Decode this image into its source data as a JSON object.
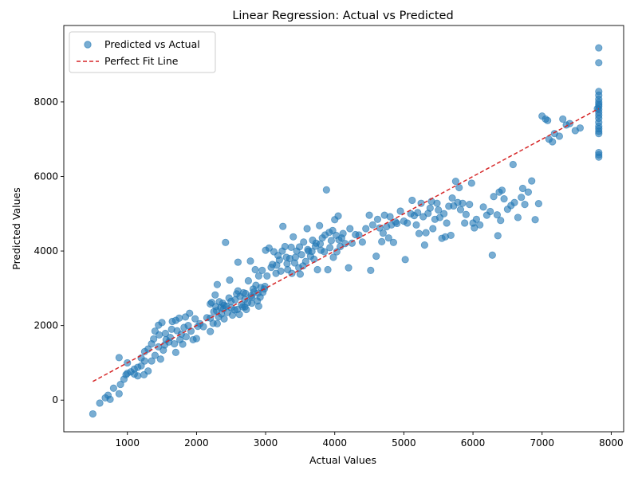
{
  "chart_data": {
    "type": "scatter",
    "title": "Linear Regression: Actual vs Predicted",
    "xlabel": "Actual Values",
    "ylabel": "Predicted Values",
    "xlim": [
      80,
      8180
    ],
    "ylim": [
      -850,
      10050
    ],
    "x_ticks": [
      1000,
      2000,
      3000,
      4000,
      5000,
      6000,
      7000,
      8000
    ],
    "y_ticks": [
      0,
      2000,
      4000,
      6000,
      8000
    ],
    "grid": false,
    "legend_position": "top-left",
    "series": [
      {
        "name": "Predicted vs Actual",
        "kind": "scatter",
        "color": "#1f77b4",
        "opacity": 0.6,
        "points": [
          [
            500,
            -370
          ],
          [
            600,
            -80
          ],
          [
            680,
            60
          ],
          [
            720,
            130
          ],
          [
            750,
            20
          ],
          [
            800,
            320
          ],
          [
            880,
            170
          ],
          [
            900,
            420
          ],
          [
            950,
            560
          ],
          [
            980,
            680
          ],
          [
            1000,
            1000
          ],
          [
            1050,
            760
          ],
          [
            1100,
            830
          ],
          [
            1150,
            650
          ],
          [
            1200,
            920
          ],
          [
            1250,
            1050
          ],
          [
            1300,
            1370
          ],
          [
            1350,
            1510
          ],
          [
            1400,
            1850
          ],
          [
            1450,
            2010
          ],
          [
            1500,
            2080
          ],
          [
            1550,
            1790
          ],
          [
            1600,
            1560
          ],
          [
            1650,
            2110
          ],
          [
            1700,
            1280
          ],
          [
            1750,
            2200
          ],
          [
            1800,
            1500
          ],
          [
            1850,
            1700
          ],
          [
            1900,
            2330
          ],
          [
            1950,
            1620
          ],
          [
            2000,
            1650
          ],
          [
            1100,
            700
          ],
          [
            1150,
            880
          ],
          [
            1200,
            1130
          ],
          [
            1250,
            1300
          ],
          [
            1300,
            780
          ],
          [
            1350,
            1050
          ],
          [
            1400,
            1200
          ],
          [
            1450,
            1430
          ],
          [
            1480,
            1100
          ],
          [
            1520,
            1340
          ],
          [
            1560,
            1620
          ],
          [
            1620,
            1680
          ],
          [
            1680,
            1510
          ],
          [
            1720,
            1860
          ],
          [
            1780,
            1770
          ],
          [
            1820,
            1950
          ],
          [
            1880,
            2000
          ],
          [
            1920,
            1850
          ],
          [
            1980,
            2180
          ],
          [
            2020,
            1980
          ],
          [
            880,
            1140
          ],
          [
            1000,
            720
          ],
          [
            1240,
            680
          ],
          [
            1380,
            1640
          ],
          [
            1460,
            1750
          ],
          [
            1540,
            1480
          ],
          [
            1640,
            1900
          ],
          [
            1700,
            2140
          ],
          [
            1760,
            1620
          ],
          [
            1840,
            2230
          ],
          [
            2050,
            2050
          ],
          [
            2100,
            1970
          ],
          [
            2150,
            2210
          ],
          [
            2200,
            1840
          ],
          [
            2220,
            2620
          ],
          [
            2250,
            2370
          ],
          [
            2280,
            2510
          ],
          [
            2300,
            3100
          ],
          [
            2320,
            2230
          ],
          [
            2350,
            2480
          ],
          [
            2380,
            2600
          ],
          [
            2400,
            2180
          ],
          [
            2420,
            4230
          ],
          [
            2450,
            2350
          ],
          [
            2480,
            3220
          ],
          [
            2500,
            2650
          ],
          [
            2550,
            2420
          ],
          [
            2580,
            2850
          ],
          [
            2600,
            3700
          ],
          [
            2620,
            2300
          ],
          [
            2650,
            2560
          ],
          [
            2680,
            2880
          ],
          [
            2700,
            2700
          ],
          [
            2720,
            2430
          ],
          [
            2750,
            3200
          ],
          [
            2780,
            3730
          ],
          [
            2800,
            2600
          ],
          [
            2820,
            2980
          ],
          [
            2850,
            3500
          ],
          [
            2880,
            2660
          ],
          [
            2900,
            2520
          ],
          [
            2920,
            2760
          ],
          [
            2950,
            3480
          ],
          [
            2980,
            2980
          ],
          [
            3000,
            4020
          ],
          [
            3020,
            3330
          ],
          [
            3050,
            4080
          ],
          [
            3080,
            3560
          ],
          [
            3100,
            3640
          ],
          [
            3120,
            3980
          ],
          [
            2200,
            2200
          ],
          [
            2240,
            2060
          ],
          [
            2270,
            2820
          ],
          [
            2290,
            2400
          ],
          [
            2330,
            2640
          ],
          [
            2360,
            2310
          ],
          [
            2390,
            2450
          ],
          [
            2430,
            2520
          ],
          [
            2470,
            2740
          ],
          [
            2520,
            2280
          ],
          [
            2560,
            2690
          ],
          [
            2590,
            2430
          ],
          [
            2630,
            2780
          ],
          [
            2670,
            2500
          ],
          [
            2710,
            2860
          ],
          [
            2740,
            2620
          ],
          [
            2790,
            2800
          ],
          [
            2830,
            2900
          ],
          [
            2860,
            3080
          ],
          [
            2890,
            2870
          ],
          [
            2930,
            3020
          ],
          [
            2960,
            2890
          ],
          [
            2990,
            3050
          ],
          [
            2200,
            2580
          ],
          [
            2300,
            2050
          ],
          [
            2400,
            2540
          ],
          [
            2500,
            2480
          ],
          [
            2600,
            2930
          ],
          [
            2700,
            2500
          ],
          [
            2800,
            2760
          ],
          [
            2900,
            3330
          ],
          [
            3150,
            3400
          ],
          [
            3180,
            3880
          ],
          [
            3200,
            3760
          ],
          [
            3220,
            3460
          ],
          [
            3250,
            4660
          ],
          [
            3280,
            4120
          ],
          [
            3300,
            3830
          ],
          [
            3320,
            3500
          ],
          [
            3350,
            3800
          ],
          [
            3380,
            3400
          ],
          [
            3400,
            4380
          ],
          [
            3420,
            3680
          ],
          [
            3450,
            4000
          ],
          [
            3480,
            3550
          ],
          [
            3500,
            3380
          ],
          [
            3520,
            3900
          ],
          [
            3550,
            4240
          ],
          [
            3580,
            3720
          ],
          [
            3600,
            4600
          ],
          [
            3620,
            4000
          ],
          [
            3650,
            3860
          ],
          [
            3680,
            4290
          ],
          [
            3700,
            3780
          ],
          [
            3720,
            4130
          ],
          [
            3750,
            3500
          ],
          [
            3780,
            4680
          ],
          [
            3800,
            4020
          ],
          [
            3820,
            4350
          ],
          [
            3850,
            3980
          ],
          [
            3880,
            5640
          ],
          [
            3900,
            3500
          ],
          [
            3920,
            4500
          ],
          [
            3950,
            4280
          ],
          [
            3980,
            3830
          ],
          [
            4000,
            4840
          ],
          [
            4020,
            4420
          ],
          [
            4050,
            4940
          ],
          [
            4080,
            4120
          ],
          [
            4100,
            4350
          ],
          [
            3160,
            3620
          ],
          [
            3240,
            4000
          ],
          [
            3310,
            3660
          ],
          [
            3370,
            4100
          ],
          [
            3430,
            3830
          ],
          [
            3490,
            4110
          ],
          [
            3540,
            3600
          ],
          [
            3610,
            4040
          ],
          [
            3670,
            3990
          ],
          [
            3730,
            4210
          ],
          [
            3790,
            4190
          ],
          [
            3860,
            4430
          ],
          [
            3930,
            4090
          ],
          [
            3970,
            4550
          ],
          [
            4030,
            3980
          ],
          [
            4060,
            4300
          ],
          [
            4120,
            4470
          ],
          [
            4150,
            4200
          ],
          [
            4200,
            3550
          ],
          [
            4220,
            4600
          ],
          [
            4250,
            4210
          ],
          [
            4300,
            4440
          ],
          [
            4350,
            4430
          ],
          [
            4400,
            4240
          ],
          [
            4450,
            4600
          ],
          [
            4500,
            4960
          ],
          [
            4520,
            3480
          ],
          [
            4550,
            4700
          ],
          [
            4600,
            3860
          ],
          [
            4620,
            4850
          ],
          [
            4650,
            4620
          ],
          [
            4680,
            4250
          ],
          [
            4700,
            4480
          ],
          [
            4720,
            4960
          ],
          [
            4750,
            4650
          ],
          [
            4780,
            4350
          ],
          [
            4800,
            4920
          ],
          [
            4820,
            4700
          ],
          [
            4850,
            4230
          ],
          [
            4880,
            4780
          ],
          [
            4900,
            4740
          ],
          [
            4950,
            5070
          ],
          [
            5000,
            4800
          ],
          [
            5020,
            3770
          ],
          [
            5050,
            4750
          ],
          [
            5100,
            5000
          ],
          [
            5120,
            5360
          ],
          [
            5150,
            4950
          ],
          [
            5180,
            4700
          ],
          [
            5200,
            5030
          ],
          [
            5220,
            4470
          ],
          [
            5250,
            5280
          ],
          [
            5280,
            4920
          ],
          [
            5300,
            4160
          ],
          [
            5320,
            4490
          ],
          [
            5350,
            5010
          ],
          [
            5380,
            5150
          ],
          [
            5400,
            5330
          ],
          [
            5420,
            4600
          ],
          [
            5450,
            4850
          ],
          [
            5480,
            5280
          ],
          [
            5500,
            5100
          ],
          [
            5520,
            4900
          ],
          [
            5550,
            4340
          ],
          [
            5580,
            5000
          ],
          [
            5600,
            4380
          ],
          [
            5620,
            4750
          ],
          [
            5650,
            5200
          ],
          [
            5680,
            4420
          ],
          [
            5700,
            5420
          ],
          [
            5720,
            5210
          ],
          [
            5750,
            5870
          ],
          [
            5780,
            5300
          ],
          [
            5800,
            5700
          ],
          [
            5820,
            5110
          ],
          [
            5850,
            5280
          ],
          [
            5880,
            4750
          ],
          [
            5900,
            4980
          ],
          [
            5950,
            5250
          ],
          [
            5980,
            5820
          ],
          [
            6000,
            4750
          ],
          [
            6020,
            4620
          ],
          [
            6050,
            4850
          ],
          [
            6100,
            4700
          ],
          [
            6150,
            5180
          ],
          [
            6200,
            4960
          ],
          [
            6250,
            5060
          ],
          [
            6280,
            3890
          ],
          [
            6300,
            5460
          ],
          [
            6350,
            4970
          ],
          [
            6360,
            4410
          ],
          [
            6380,
            5580
          ],
          [
            6400,
            4820
          ],
          [
            6420,
            5630
          ],
          [
            6450,
            5400
          ],
          [
            6500,
            5120
          ],
          [
            6550,
            5220
          ],
          [
            6580,
            6320
          ],
          [
            6600,
            5300
          ],
          [
            6650,
            4900
          ],
          [
            6700,
            5440
          ],
          [
            6720,
            5680
          ],
          [
            6750,
            5250
          ],
          [
            6800,
            5580
          ],
          [
            6850,
            5880
          ],
          [
            6900,
            4840
          ],
          [
            6950,
            5270
          ],
          [
            7000,
            7620
          ],
          [
            7050,
            7540
          ],
          [
            7080,
            7500
          ],
          [
            7100,
            7000
          ],
          [
            7150,
            6930
          ],
          [
            7180,
            7150
          ],
          [
            7250,
            7080
          ],
          [
            7300,
            7540
          ],
          [
            7350,
            7380
          ],
          [
            7400,
            7420
          ],
          [
            7480,
            7230
          ],
          [
            7550,
            7300
          ],
          [
            7800,
            7820
          ]
        ]
      },
      {
        "name": "",
        "kind": "scatter",
        "color": "#1f77b4",
        "opacity": 0.6,
        "points": [
          [
            7820,
            9450
          ],
          [
            7820,
            9050
          ],
          [
            7820,
            8280
          ],
          [
            7820,
            8180
          ],
          [
            7820,
            8070
          ],
          [
            7820,
            7990
          ],
          [
            7820,
            7930
          ],
          [
            7820,
            7880
          ],
          [
            7820,
            7800
          ],
          [
            7820,
            7720
          ],
          [
            7820,
            7640
          ],
          [
            7820,
            7560
          ],
          [
            7820,
            7350
          ],
          [
            7820,
            7280
          ],
          [
            7820,
            7210
          ],
          [
            7820,
            7150
          ],
          [
            7820,
            6640
          ],
          [
            7820,
            6580
          ],
          [
            7820,
            6520
          ],
          [
            7820,
            7450
          ]
        ]
      },
      {
        "name": "Perfect Fit Line",
        "kind": "line",
        "color": "#d62728",
        "dash": "5,3",
        "points": [
          [
            500,
            500
          ],
          [
            7820,
            7820
          ]
        ]
      }
    ]
  }
}
